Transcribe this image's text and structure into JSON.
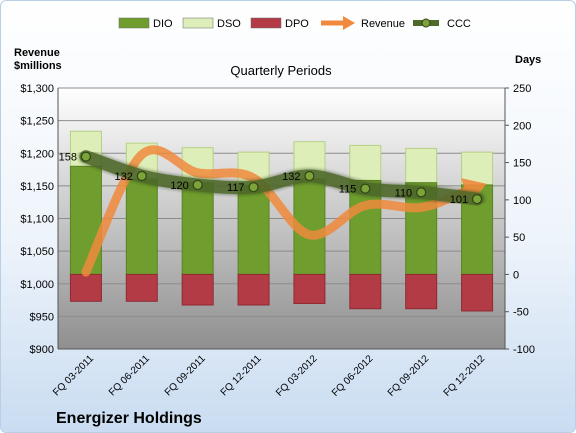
{
  "chart_data": {
    "type": "bar",
    "title": "Quarterly Periods",
    "company": "Energizer Holdings",
    "left_axis_label": "Revenue\n$millions",
    "right_axis_label": "Days",
    "categories": [
      "FQ 03-2011",
      "FQ 06-2011",
      "FQ 09-2011",
      "FQ 12-2011",
      "FQ 03-2012",
      "FQ 06-2012",
      "FQ 09-2012",
      "FQ 12-2012"
    ],
    "left_ylim": [
      900,
      1300
    ],
    "left_ticks": [
      "$900",
      "$950",
      "$1,000",
      "$1,050",
      "$1,100",
      "$1,150",
      "$1,200",
      "$1,250",
      "$1,300"
    ],
    "right_ylim": [
      -100,
      250
    ],
    "right_ticks": [
      "-100",
      "-50",
      "0",
      "50",
      "100",
      "150",
      "200",
      "250"
    ],
    "grid": true,
    "legend_position": "top",
    "series": [
      {
        "name": "DIO",
        "axis": "right",
        "color": "#6f9e2e",
        "values": [
          145,
          128,
          123,
          119,
          128,
          126,
          123,
          120
        ]
      },
      {
        "name": "DSO",
        "axis": "right",
        "color": "#ddeeb8",
        "values": [
          47,
          48,
          47,
          45,
          50,
          47,
          46,
          44
        ]
      },
      {
        "name": "DPO",
        "axis": "right",
        "color": "#b33b45",
        "values": [
          -36,
          -36,
          -41,
          -41,
          -39,
          -46,
          -46,
          -49
        ]
      },
      {
        "name": "Revenue",
        "axis": "left",
        "color": "#f08a3c",
        "values": [
          1018,
          1198,
          1170,
          1162,
          1075,
          1120,
          1117,
          1148
        ]
      },
      {
        "name": "CCC",
        "axis": "right",
        "color": "#4f6a2a",
        "values": [
          158,
          132,
          120,
          117,
          132,
          115,
          110,
          101
        ]
      }
    ],
    "ccc_labels": [
      "158",
      "132",
      "120",
      "117",
      "132",
      "115",
      "110",
      "101"
    ]
  }
}
